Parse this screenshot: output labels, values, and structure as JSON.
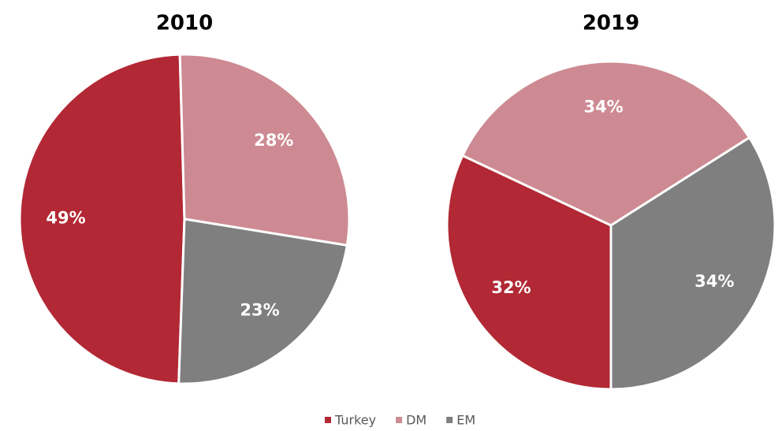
{
  "chart_data": [
    {
      "type": "pie",
      "title": "2010",
      "categories": [
        "Turkey",
        "DM",
        "EM"
      ],
      "values": [
        49,
        28,
        23
      ],
      "value_labels": [
        "49%",
        "28%",
        "23%"
      ],
      "colors": [
        "#b22834",
        "#cd8a92",
        "#7f7f7f"
      ]
    },
    {
      "type": "pie",
      "title": "2019",
      "categories": [
        "Turkey",
        "DM",
        "EM"
      ],
      "values": [
        32,
        34,
        34
      ],
      "value_labels": [
        "32%",
        "34%",
        "34%"
      ],
      "colors": [
        "#b22834",
        "#cd8a92",
        "#7f7f7f"
      ]
    }
  ]
}
